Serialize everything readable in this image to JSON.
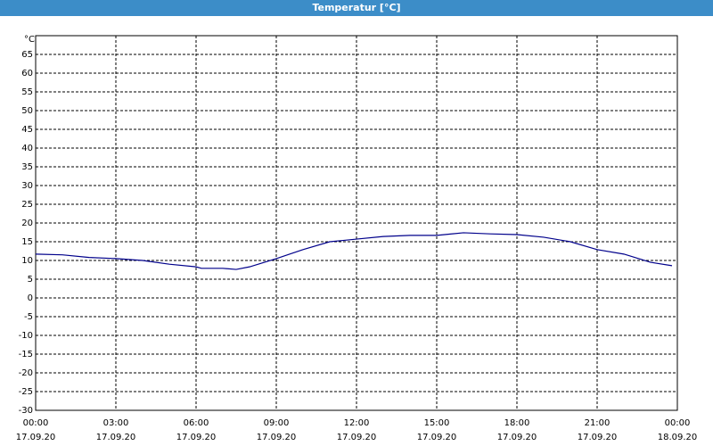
{
  "window_title": "Temperatur [°C]",
  "chart_data": {
    "type": "line",
    "y_unit_label": "°C",
    "x": [
      0,
      1,
      2,
      3,
      4,
      5,
      6,
      6.2,
      7,
      7.5,
      8,
      9,
      10,
      11,
      12,
      13,
      14,
      15,
      16,
      17,
      18,
      19,
      20,
      21,
      22,
      23,
      23.8
    ],
    "series": [
      {
        "name": "Temperatur",
        "color": "#00008b",
        "values": [
          11.7,
          11.5,
          10.8,
          10.5,
          10,
          9,
          8.3,
          7.9,
          7.9,
          7.6,
          8.3,
          10.5,
          12.9,
          15,
          15.7,
          16.4,
          16.7,
          16.7,
          17.4,
          17.1,
          16.9,
          16.2,
          15,
          12.9,
          11.7,
          9.5,
          8.6
        ]
      }
    ],
    "xlim": [
      0,
      24
    ],
    "xticks": [
      {
        "value": 0,
        "label": "00:00",
        "date": "17.09.20"
      },
      {
        "value": 3,
        "label": "03:00",
        "date": "17.09.20"
      },
      {
        "value": 6,
        "label": "06:00",
        "date": "17.09.20"
      },
      {
        "value": 9,
        "label": "09:00",
        "date": "17.09.20"
      },
      {
        "value": 12,
        "label": "12:00",
        "date": "17.09.20"
      },
      {
        "value": 15,
        "label": "15:00",
        "date": "17.09.20"
      },
      {
        "value": 18,
        "label": "18:00",
        "date": "17.09.20"
      },
      {
        "value": 21,
        "label": "21:00",
        "date": "17.09.20"
      },
      {
        "value": 24,
        "label": "00:00",
        "date": "18.09.20"
      }
    ],
    "ylim": [
      -30,
      70
    ],
    "yticks": [
      -30,
      -25,
      -20,
      -15,
      -10,
      -5,
      0,
      5,
      10,
      15,
      20,
      25,
      30,
      35,
      40,
      45,
      50,
      55,
      60,
      65
    ],
    "grid": true
  }
}
